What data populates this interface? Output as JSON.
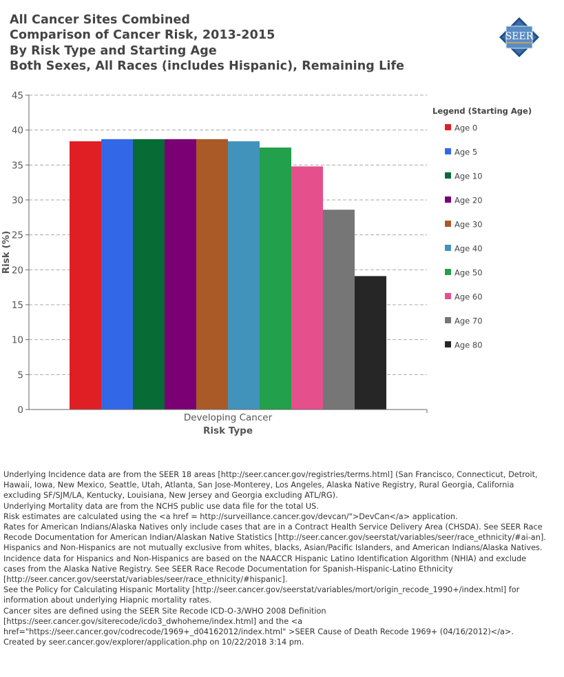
{
  "header": {
    "title_lines": [
      "All Cancer Sites Combined",
      "Comparison of Cancer Risk, 2013-2015",
      "By Risk Type and Starting Age",
      "Both Sexes, All Races (includes Hispanic), Remaining Life"
    ],
    "logo_text": "SEER"
  },
  "chart_data": {
    "type": "bar",
    "categories": [
      "Developing Cancer"
    ],
    "xlabel": "Risk Type",
    "ylabel": "Risk (%)",
    "ylim": [
      0,
      45
    ],
    "yticks": [
      0,
      5,
      10,
      15,
      20,
      25,
      30,
      35,
      40,
      45
    ],
    "grid": true,
    "legend_title": "Legend (Starting Age)",
    "legend_position": "right",
    "series": [
      {
        "name": "Age 0",
        "color": "#e01f25",
        "values": [
          38.4
        ]
      },
      {
        "name": "Age 5",
        "color": "#3268e8",
        "values": [
          38.7
        ]
      },
      {
        "name": "Age 10",
        "color": "#066b35",
        "values": [
          38.7
        ]
      },
      {
        "name": "Age 20",
        "color": "#7b0074",
        "values": [
          38.7
        ]
      },
      {
        "name": "Age 30",
        "color": "#a95a27",
        "values": [
          38.7
        ]
      },
      {
        "name": "Age 40",
        "color": "#4293bc",
        "values": [
          38.4
        ]
      },
      {
        "name": "Age 50",
        "color": "#22a04b",
        "values": [
          37.5
        ]
      },
      {
        "name": "Age 60",
        "color": "#e5508c",
        "values": [
          34.8
        ]
      },
      {
        "name": "Age 70",
        "color": "#767676",
        "values": [
          28.6
        ]
      },
      {
        "name": "Age 80",
        "color": "#262626",
        "values": [
          19.1
        ]
      }
    ]
  },
  "notes": [
    "Underlying Incidence data are from the SEER 18 areas [http://seer.cancer.gov/registries/terms.html] (San Francisco, Connecticut, Detroit, Hawaii, Iowa, New Mexico, Seattle, Utah, Atlanta, San Jose-Monterey, Los Angeles, Alaska Native Registry, Rural Georgia, California excluding SF/SJM/LA, Kentucky, Louisiana, New Jersey and Georgia excluding ATL/RG).",
    "Underlying Mortality data are from the NCHS public use data file for the total US.",
    "Risk estimates are calculated using the <a href = http://surveillance.cancer.gov/devcan/\">DevCan</a> application.",
    "Rates for American Indians/Alaska Natives only include cases that are in a Contract Health Service Delivery Area (CHSDA). See  SEER Race Recode Documentation for American Indian/Alaskan Native Statistics [http://seer.cancer.gov/seerstat/variables/seer/race_ethnicity/#ai-an].",
    "Hispanics and Non-Hispanics are not mutually exclusive from whites, blacks, Asian/Pacific Islanders, and American Indians/Alaska Natives.",
    "Incidence data for Hispanics and Non-Hispanics are based on the NAACCR Hispanic Latino Identification Algorithm (NHIA) and exclude cases from the Alaska Native Registry. See SEER Race Recode Documentation for Spanish-Hispanic-Latino Ethnicity [http://seer.cancer.gov/seerstat/variables/seer/race_ethnicity/#hispanic].",
    "See the Policy for Calculating Hispanic Mortality [http://seer.cancer.gov/seerstat/variables/mort/origin_recode_1990+/index.html] for information about underlying Hiapnic mortality rates.",
    "Cancer sites are defined using the SEER Site Recode ICD-O-3/WHO 2008 Definition [https://seer.cancer.gov/siterecode/icdo3_dwhoheme/index.html] and the <a href=\"https://seer.cancer.gov/codrecode/1969+_d04162012/index.html\" >SEER Cause of Death Recode 1969+ (04/16/2012)</a>.",
    "Created by seer.cancer.gov/explorer/application.php on 10/22/2018 3:14 pm."
  ]
}
